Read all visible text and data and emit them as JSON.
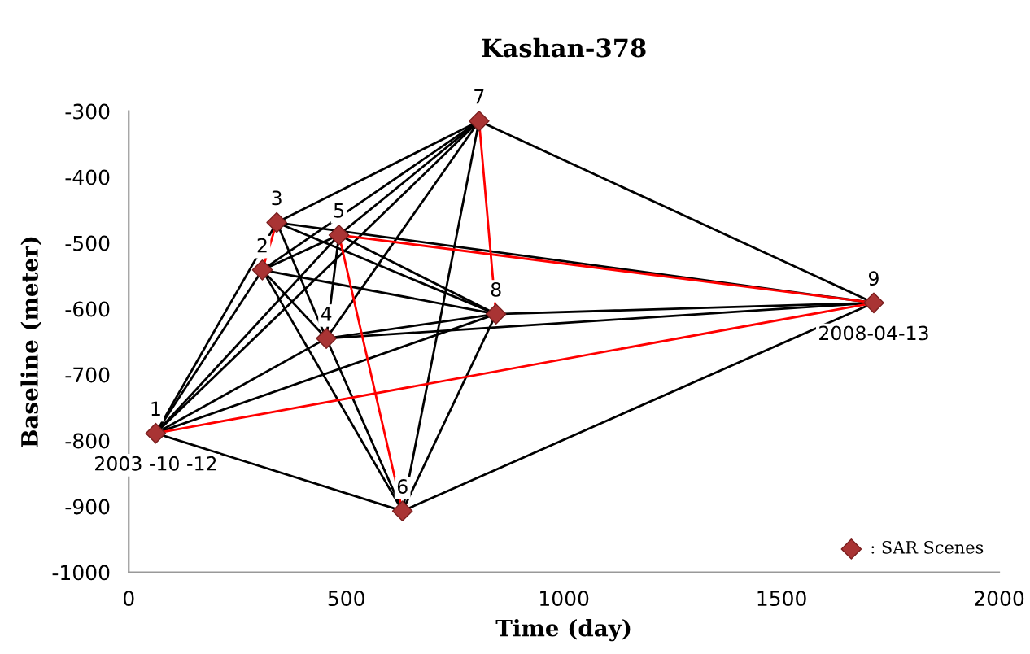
{
  "chart_data": {
    "type": "scatter",
    "title": "Kashan-378",
    "xlabel": "Time (day)",
    "ylabel": "Baseline (meter)",
    "xlim": [
      0,
      2000
    ],
    "xticks": [
      0,
      500,
      1000,
      1500,
      2000
    ],
    "ylim": [
      -1000,
      -300
    ],
    "yticks": [
      -1000,
      -900,
      -800,
      -700,
      -600,
      -500,
      -400,
      -300
    ],
    "grid": false,
    "legend": "bottom right",
    "series": [
      {
        "type": "line",
        "color": "#000000",
        "x": [
          62,
          307
        ],
        "values": [
          -789,
          -541
        ]
      },
      {
        "type": "line",
        "color": "#000000",
        "x": [
          62,
          340
        ],
        "values": [
          -789,
          -469
        ]
      },
      {
        "type": "line",
        "color": "#000000",
        "x": [
          62,
          454
        ],
        "values": [
          -789,
          -645
        ]
      },
      {
        "type": "line",
        "color": "#000000",
        "x": [
          62,
          483
        ],
        "values": [
          -789,
          -488
        ]
      },
      {
        "type": "line",
        "color": "#000000",
        "x": [
          62,
          629
        ],
        "values": [
          -789,
          -907
        ]
      },
      {
        "type": "line",
        "color": "#000000",
        "x": [
          62,
          805
        ],
        "values": [
          -789,
          -315
        ]
      },
      {
        "type": "line",
        "color": "#000000",
        "x": [
          62,
          844
        ],
        "values": [
          -789,
          -608
        ]
      },
      {
        "type": "line",
        "color": "#000000",
        "x": [
          307,
          454
        ],
        "values": [
          -541,
          -645
        ]
      },
      {
        "type": "line",
        "color": "#000000",
        "x": [
          307,
          483
        ],
        "values": [
          -541,
          -488
        ]
      },
      {
        "type": "line",
        "color": "#000000",
        "x": [
          307,
          629
        ],
        "values": [
          -541,
          -907
        ]
      },
      {
        "type": "line",
        "color": "#000000",
        "x": [
          307,
          805
        ],
        "values": [
          -541,
          -315
        ]
      },
      {
        "type": "line",
        "color": "#000000",
        "x": [
          307,
          844
        ],
        "values": [
          -541,
          -608
        ]
      },
      {
        "type": "line",
        "color": "#000000",
        "x": [
          340,
          454
        ],
        "values": [
          -469,
          -645
        ]
      },
      {
        "type": "line",
        "color": "#000000",
        "x": [
          340,
          805
        ],
        "values": [
          -469,
          -315
        ]
      },
      {
        "type": "line",
        "color": "#000000",
        "x": [
          340,
          844
        ],
        "values": [
          -469,
          -608
        ]
      },
      {
        "type": "line",
        "color": "#000000",
        "x": [
          340,
          1712
        ],
        "values": [
          -469,
          -591
        ]
      },
      {
        "type": "line",
        "color": "#000000",
        "x": [
          454,
          483
        ],
        "values": [
          -645,
          -488
        ]
      },
      {
        "type": "line",
        "color": "#000000",
        "x": [
          454,
          629
        ],
        "values": [
          -645,
          -907
        ]
      },
      {
        "type": "line",
        "color": "#000000",
        "x": [
          454,
          805
        ],
        "values": [
          -645,
          -315
        ]
      },
      {
        "type": "line",
        "color": "#000000",
        "x": [
          454,
          844
        ],
        "values": [
          -645,
          -608
        ]
      },
      {
        "type": "line",
        "color": "#000000",
        "x": [
          454,
          1712
        ],
        "values": [
          -645,
          -591
        ]
      },
      {
        "type": "line",
        "color": "#000000",
        "x": [
          483,
          805
        ],
        "values": [
          -488,
          -315
        ]
      },
      {
        "type": "line",
        "color": "#000000",
        "x": [
          483,
          844
        ],
        "values": [
          -488,
          -608
        ]
      },
      {
        "type": "line",
        "color": "#000000",
        "x": [
          629,
          805
        ],
        "values": [
          -907,
          -315
        ]
      },
      {
        "type": "line",
        "color": "#000000",
        "x": [
          629,
          844
        ],
        "values": [
          -907,
          -608
        ]
      },
      {
        "type": "line",
        "color": "#000000",
        "x": [
          629,
          1712
        ],
        "values": [
          -907,
          -591
        ]
      },
      {
        "type": "line",
        "color": "#000000",
        "x": [
          805,
          1712
        ],
        "values": [
          -315,
          -591
        ]
      },
      {
        "type": "line",
        "color": "#000000",
        "x": [
          844,
          1712
        ],
        "values": [
          -608,
          -591
        ]
      },
      {
        "type": "line",
        "color": "#ff0000",
        "x": [
          307,
          340
        ],
        "values": [
          -541,
          -469
        ]
      },
      {
        "type": "line",
        "color": "#ff0000",
        "x": [
          483,
          629
        ],
        "values": [
          -488,
          -907
        ]
      },
      {
        "type": "line",
        "color": "#ff0000",
        "x": [
          805,
          844
        ],
        "values": [
          -315,
          -608
        ]
      },
      {
        "type": "line",
        "color": "#ff0000",
        "x": [
          62,
          1712
        ],
        "values": [
          -789,
          -591
        ]
      },
      {
        "type": "line",
        "color": "#ff0000",
        "x": [
          483,
          1712
        ],
        "values": [
          -488,
          -591
        ]
      },
      {
        "name": ": SAR Scenes",
        "color": "#a93434",
        "marker": "diamond",
        "x": [
          62,
          307,
          340,
          454,
          483,
          629,
          805,
          844,
          1712
        ],
        "values": [
          -789,
          -541,
          -469,
          -645,
          -488,
          -907,
          -315,
          -608,
          -591
        ]
      }
    ],
    "annotations": [
      {
        "text": "1",
        "x": 62,
        "y": -789
      },
      {
        "text": "2",
        "x": 307,
        "y": -541
      },
      {
        "text": "3",
        "x": 340,
        "y": -469
      },
      {
        "text": "4",
        "x": 454,
        "y": -645
      },
      {
        "text": "5",
        "x": 483,
        "y": -488
      },
      {
        "text": "6",
        "x": 629,
        "y": -907
      },
      {
        "text": "7",
        "x": 805,
        "y": -315
      },
      {
        "text": "8",
        "x": 844,
        "y": -608
      },
      {
        "text": "9",
        "x": 1712,
        "y": -591
      },
      {
        "text": "2003 -10 -12",
        "x": 62,
        "y": -789
      },
      {
        "text": "2008-04-13",
        "x": 1712,
        "y": -591
      }
    ]
  }
}
